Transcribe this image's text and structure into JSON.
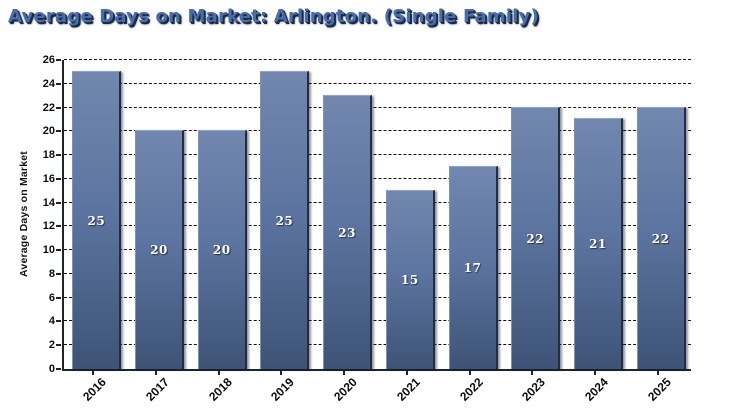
{
  "chart_data": {
    "type": "bar",
    "title": "Average Days on Market: Arlington. (Single Family)",
    "categories": [
      "2016",
      "2017",
      "2018",
      "2019",
      "2020",
      "2021",
      "2022",
      "2023",
      "2024",
      "2025"
    ],
    "values": [
      25,
      20,
      20,
      25,
      23,
      15,
      17,
      22,
      21,
      22
    ],
    "xlabel": "",
    "ylabel": "Average Days on Market",
    "ylim": [
      0,
      26
    ],
    "yticks": [
      0,
      2,
      4,
      6,
      8,
      10,
      12,
      14,
      16,
      18,
      20,
      22,
      24,
      26
    ],
    "grid": "horizontal-dashed",
    "legend": "none",
    "bar_value_labels": true,
    "x_tick_rotation_deg": -45
  },
  "colors": {
    "title_fill": "#4a6da5",
    "title_shadow": "#1b2a49",
    "bar_gradient_top": "#7287ae",
    "bar_gradient_mid": "#5d75a1",
    "bar_gradient_bottom": "#3e5376",
    "bar_right_edge": "#222c44",
    "bar_value_text": "#ffffff",
    "axis_line": "#1c2430",
    "gridline": "#101010",
    "tick_text": "#0c0c0c",
    "background": "#ffffff"
  }
}
